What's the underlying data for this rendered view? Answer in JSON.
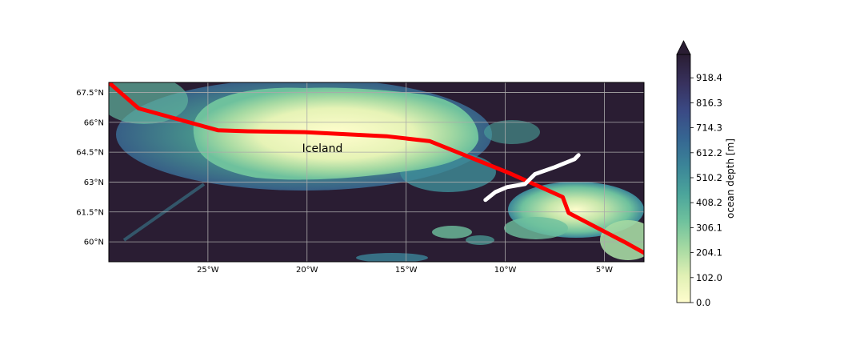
{
  "map": {
    "place_label": "Iceland",
    "lon_ticks": [
      {
        "lon": -25,
        "label": "25°W"
      },
      {
        "lon": -20,
        "label": "20°W"
      },
      {
        "lon": -15,
        "label": "15°W"
      },
      {
        "lon": -10,
        "label": "10°W"
      },
      {
        "lon": -5,
        "label": "5°W"
      }
    ],
    "lat_ticks": [
      {
        "lat": 67.5,
        "label": "67.5°N"
      },
      {
        "lat": 66,
        "label": "66°N"
      },
      {
        "lat": 64.5,
        "label": "64.5°N"
      },
      {
        "lat": 63,
        "label": "63°N"
      },
      {
        "lat": 61.5,
        "label": "61.5°N"
      },
      {
        "lat": 60,
        "label": "60°N"
      }
    ],
    "extent": {
      "lon_min": -30,
      "lon_max": -3,
      "lat_min": 59.0,
      "lat_max": 68.0
    },
    "red_line": [
      [
        -30,
        68.0
      ],
      [
        -28.5,
        66.7
      ],
      [
        -24.5,
        65.6
      ],
      [
        -23,
        65.55
      ],
      [
        -20,
        65.5
      ],
      [
        -16,
        65.3
      ],
      [
        -13.8,
        65.05
      ],
      [
        -9.8,
        63.45
      ],
      [
        -7.1,
        62.25
      ],
      [
        -6.8,
        61.45
      ],
      [
        -4,
        60.0
      ],
      [
        -3,
        59.45
      ]
    ],
    "white_line": [
      [
        -11,
        62.1
      ],
      [
        -10.5,
        62.5
      ],
      [
        -9.9,
        62.75
      ],
      [
        -9,
        62.9
      ],
      [
        -8.5,
        63.4
      ],
      [
        -7.5,
        63.75
      ],
      [
        -6.5,
        64.15
      ],
      [
        -6.3,
        64.35
      ]
    ],
    "colors": {
      "deep": "#2a1d33",
      "red_line": "#ff0000",
      "white_line": "#ffffff",
      "gridline": "#aaaaaa"
    }
  },
  "colorbar": {
    "label": "ocean depth [m]",
    "ticks": [
      "0.0",
      "102.0",
      "204.1",
      "306.1",
      "408.2",
      "510.2",
      "612.2",
      "714.3",
      "816.3",
      "918.4"
    ],
    "colors": [
      "#fffdcd",
      "#e0f0b4",
      "#a5d9a2",
      "#6ec19d",
      "#4ba49b",
      "#3b8598",
      "#366692",
      "#3a4a85",
      "#38325f",
      "#2a1d33"
    ]
  }
}
